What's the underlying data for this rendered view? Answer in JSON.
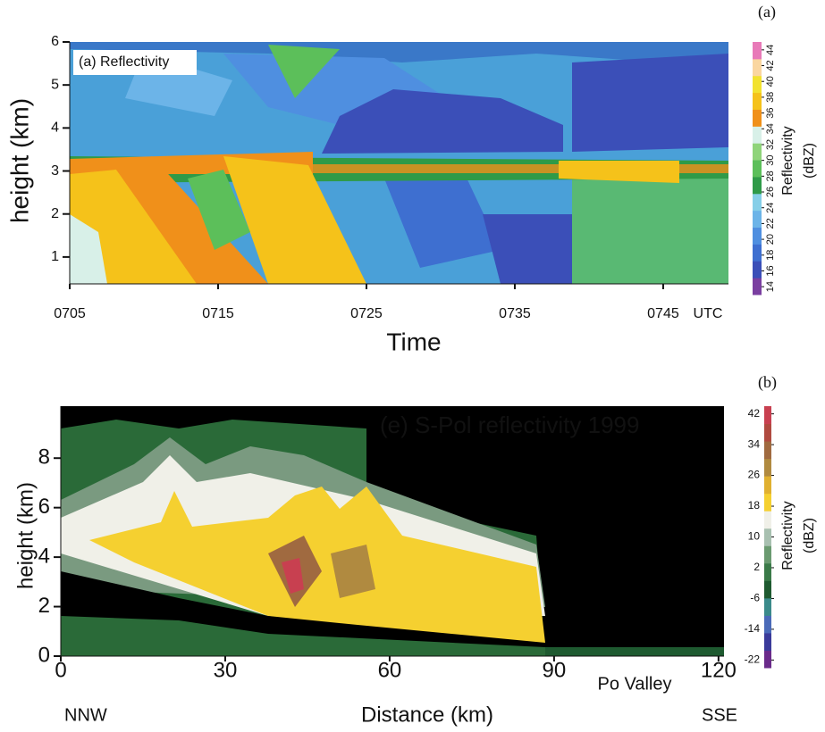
{
  "chart_data": [
    {
      "type": "heatmap",
      "panel_label": "(a)",
      "title": "(a) Reflectivity",
      "xlabel": "Time",
      "ylabel": "height (km)",
      "x_unit": "UTC",
      "xlim": [
        5,
        49.4
      ],
      "ylim": [
        0.375,
        6
      ],
      "xticks": [
        {
          "value": 5,
          "label": "0705"
        },
        {
          "value": 15,
          "label": "0715"
        },
        {
          "value": 25,
          "label": "0725"
        },
        {
          "value": 35,
          "label": "0735"
        },
        {
          "value": 45,
          "label": "0745"
        }
      ],
      "yticks": [
        1,
        2,
        3,
        4,
        5,
        6
      ],
      "colorbar": {
        "label": [
          "Reflectivity",
          "(dBZ)"
        ],
        "lim": [
          13,
          45
        ],
        "ticks": [
          14,
          16,
          18,
          20,
          22,
          24,
          26,
          28,
          30,
          32,
          34,
          36,
          38,
          40,
          42,
          44
        ],
        "colors": [
          "#7a3fa0",
          "#3b4fb8",
          "#3e6fd0",
          "#4f8fe0",
          "#6cb4e8",
          "#86cfe8",
          "#2f9a48",
          "#5cbf5a",
          "#8fd47a",
          "#d8f0e8",
          "#f0901a",
          "#f5c21a",
          "#f2e230",
          "#fad6a0",
          "#e87ab8"
        ]
      }
    },
    {
      "type": "heatmap",
      "panel_label": "(b)",
      "title": "(e) S-Pol reflectivity 1999",
      "xlabel": "Distance (km)",
      "ylabel": "height (km)",
      "annotations": [
        "NNW",
        "SSE",
        "Po Valley"
      ],
      "xlim": [
        0,
        121
      ],
      "ylim": [
        0,
        10.1
      ],
      "xticks": [
        0,
        30,
        60,
        90,
        120
      ],
      "yticks": [
        0,
        2,
        4,
        6,
        8
      ],
      "colorbar": {
        "label": [
          "Reflectivity",
          "(dBZ)"
        ],
        "lim": [
          -24,
          44
        ],
        "ticks": [
          42,
          34,
          26,
          18,
          10,
          2,
          -6,
          -14,
          -22
        ],
        "colors": [
          "#6a2a8a",
          "#3a3a9a",
          "#4a6ab8",
          "#3a8a8a",
          "#1e5a30",
          "#3a7a48",
          "#6a9a70",
          "#a8c0b0",
          "#f0f0e8",
          "#f5d030",
          "#e0b030",
          "#b08a40",
          "#a06a40",
          "#b04a40",
          "#c84050"
        ]
      }
    }
  ]
}
